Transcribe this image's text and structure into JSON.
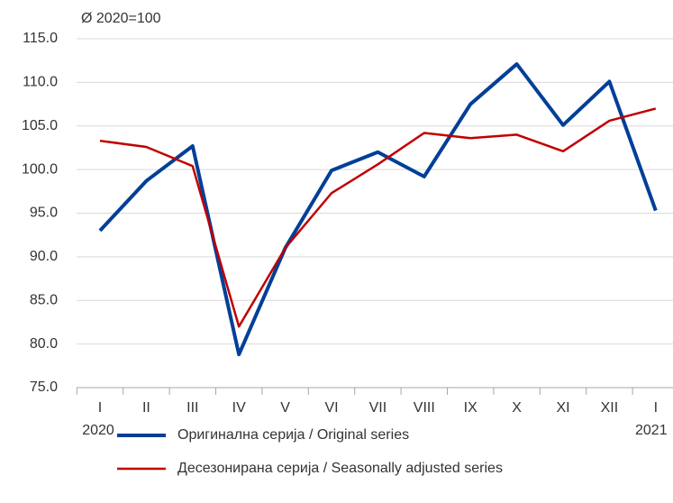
{
  "chart_data": {
    "type": "line",
    "unit_label": "Ø 2020=100",
    "categories": [
      "I",
      "II",
      "III",
      "IV",
      "V",
      "VI",
      "VII",
      "VIII",
      "IX",
      "X",
      "XI",
      "XII",
      "I"
    ],
    "year_labels": [
      "2020",
      "2021"
    ],
    "series": [
      {
        "name": "Оригинална серија / Original series",
        "color": "#003f98",
        "values": [
          93.0,
          98.7,
          102.7,
          78.8,
          91.0,
          99.9,
          102.0,
          99.2,
          107.5,
          112.1,
          105.1,
          110.1,
          95.3
        ]
      },
      {
        "name": "Десезонирана серија / Seasonally adjusted series",
        "color": "#c00000",
        "values": [
          103.3,
          102.6,
          100.4,
          82.0,
          91.0,
          97.3,
          100.6,
          104.2,
          103.6,
          104.0,
          102.1,
          105.6,
          107.0
        ]
      }
    ],
    "ylim": [
      75,
      115
    ],
    "yticks": [
      {
        "value": 75,
        "label": "75.0"
      },
      {
        "value": 80,
        "label": "80.0"
      },
      {
        "value": 85,
        "label": "85.0"
      },
      {
        "value": 90,
        "label": "90.0"
      },
      {
        "value": 95,
        "label": "95.0"
      },
      {
        "value": 100,
        "label": "100.0"
      },
      {
        "value": 105,
        "label": "105.0"
      },
      {
        "value": 110,
        "label": "110.0"
      },
      {
        "value": 115,
        "label": "115.0"
      }
    ],
    "grid": true
  }
}
